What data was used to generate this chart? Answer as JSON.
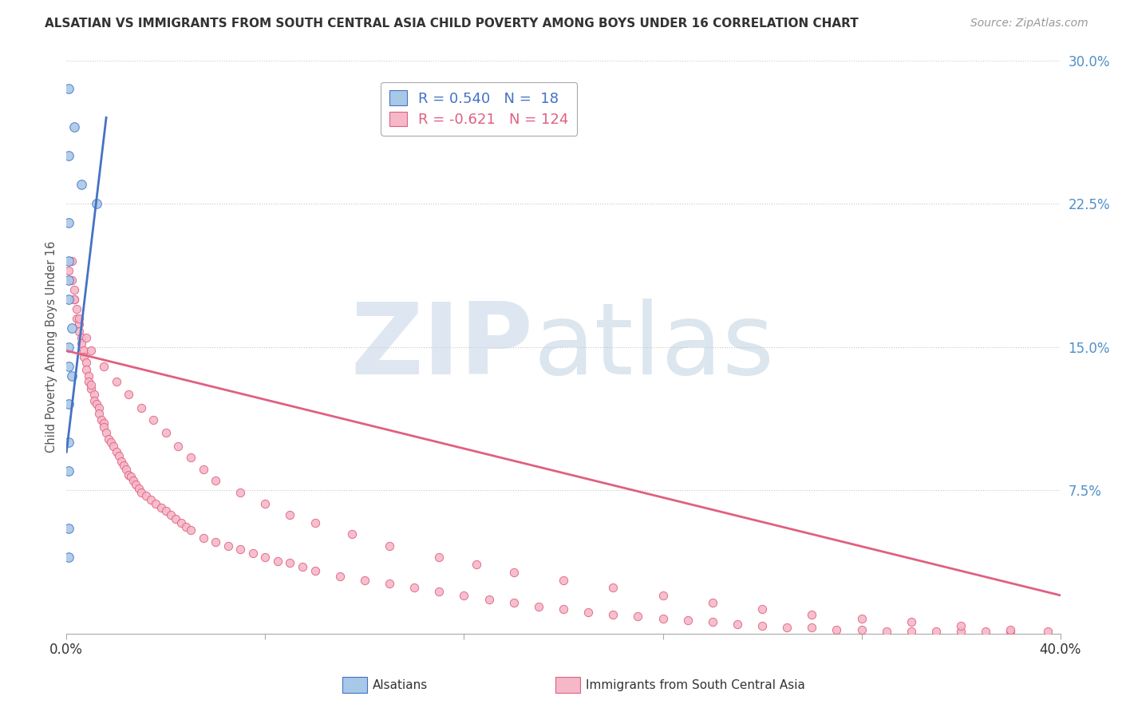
{
  "title": "ALSATIAN VS IMMIGRANTS FROM SOUTH CENTRAL ASIA CHILD POVERTY AMONG BOYS UNDER 16 CORRELATION CHART",
  "source": "Source: ZipAtlas.com",
  "ylabel": "Child Poverty Among Boys Under 16",
  "xlim": [
    0.0,
    0.4
  ],
  "ylim": [
    0.0,
    0.3
  ],
  "ytick_positions": [
    0.0,
    0.075,
    0.15,
    0.225,
    0.3
  ],
  "ytick_labels": [
    "",
    "7.5%",
    "15.0%",
    "22.5%",
    "30.0%"
  ],
  "xtick_positions": [
    0.0,
    0.08,
    0.16,
    0.24,
    0.32,
    0.4
  ],
  "xleft_label": "0.0%",
  "xright_label": "40.0%",
  "blue_R": 0.54,
  "blue_N": 18,
  "pink_R": -0.621,
  "pink_N": 124,
  "blue_color": "#a8c8e8",
  "pink_color": "#f5b8c8",
  "blue_line_color": "#4472c4",
  "pink_line_color": "#e06080",
  "watermark_zip": "ZIP",
  "watermark_atlas": "atlas",
  "legend_label_blue": "Alsatians",
  "legend_label_pink": "Immigrants from South Central Asia",
  "blue_x": [
    0.001,
    0.003,
    0.006,
    0.001,
    0.001,
    0.001,
    0.001,
    0.001,
    0.002,
    0.001,
    0.001,
    0.002,
    0.012,
    0.001,
    0.001,
    0.001,
    0.001,
    0.001
  ],
  "blue_y": [
    0.285,
    0.265,
    0.235,
    0.25,
    0.215,
    0.195,
    0.185,
    0.175,
    0.16,
    0.15,
    0.14,
    0.135,
    0.225,
    0.12,
    0.1,
    0.085,
    0.055,
    0.04
  ],
  "pink_x": [
    0.001,
    0.002,
    0.002,
    0.003,
    0.003,
    0.004,
    0.004,
    0.005,
    0.005,
    0.006,
    0.006,
    0.007,
    0.007,
    0.008,
    0.008,
    0.009,
    0.009,
    0.01,
    0.01,
    0.011,
    0.011,
    0.012,
    0.013,
    0.013,
    0.014,
    0.015,
    0.015,
    0.016,
    0.017,
    0.018,
    0.019,
    0.02,
    0.021,
    0.022,
    0.023,
    0.024,
    0.025,
    0.026,
    0.027,
    0.028,
    0.029,
    0.03,
    0.032,
    0.034,
    0.036,
    0.038,
    0.04,
    0.042,
    0.044,
    0.046,
    0.048,
    0.05,
    0.055,
    0.06,
    0.065,
    0.07,
    0.075,
    0.08,
    0.085,
    0.09,
    0.095,
    0.1,
    0.11,
    0.12,
    0.13,
    0.14,
    0.15,
    0.16,
    0.17,
    0.18,
    0.19,
    0.2,
    0.21,
    0.22,
    0.23,
    0.24,
    0.25,
    0.26,
    0.27,
    0.28,
    0.29,
    0.3,
    0.31,
    0.32,
    0.33,
    0.34,
    0.35,
    0.36,
    0.37,
    0.38,
    0.003,
    0.005,
    0.008,
    0.01,
    0.015,
    0.02,
    0.025,
    0.03,
    0.035,
    0.04,
    0.045,
    0.05,
    0.055,
    0.06,
    0.07,
    0.08,
    0.09,
    0.1,
    0.115,
    0.13,
    0.15,
    0.165,
    0.18,
    0.2,
    0.22,
    0.24,
    0.26,
    0.28,
    0.3,
    0.32,
    0.34,
    0.36,
    0.38,
    0.395
  ],
  "pink_y": [
    0.19,
    0.195,
    0.185,
    0.18,
    0.175,
    0.17,
    0.165,
    0.162,
    0.158,
    0.155,
    0.152,
    0.148,
    0.145,
    0.142,
    0.138,
    0.135,
    0.132,
    0.128,
    0.13,
    0.125,
    0.122,
    0.12,
    0.118,
    0.115,
    0.112,
    0.11,
    0.108,
    0.105,
    0.102,
    0.1,
    0.098,
    0.095,
    0.093,
    0.09,
    0.088,
    0.086,
    0.083,
    0.082,
    0.08,
    0.078,
    0.076,
    0.074,
    0.072,
    0.07,
    0.068,
    0.066,
    0.064,
    0.062,
    0.06,
    0.058,
    0.056,
    0.054,
    0.05,
    0.048,
    0.046,
    0.044,
    0.042,
    0.04,
    0.038,
    0.037,
    0.035,
    0.033,
    0.03,
    0.028,
    0.026,
    0.024,
    0.022,
    0.02,
    0.018,
    0.016,
    0.014,
    0.013,
    0.011,
    0.01,
    0.009,
    0.008,
    0.007,
    0.006,
    0.005,
    0.004,
    0.003,
    0.003,
    0.002,
    0.002,
    0.001,
    0.001,
    0.001,
    0.001,
    0.001,
    0.001,
    0.175,
    0.165,
    0.155,
    0.148,
    0.14,
    0.132,
    0.125,
    0.118,
    0.112,
    0.105,
    0.098,
    0.092,
    0.086,
    0.08,
    0.074,
    0.068,
    0.062,
    0.058,
    0.052,
    0.046,
    0.04,
    0.036,
    0.032,
    0.028,
    0.024,
    0.02,
    0.016,
    0.013,
    0.01,
    0.008,
    0.006,
    0.004,
    0.002,
    0.001
  ],
  "pink_line_start_x": 0.0,
  "pink_line_start_y": 0.148,
  "pink_line_end_x": 0.4,
  "pink_line_end_y": 0.02,
  "blue_line_start_x": 0.0,
  "blue_line_start_y": 0.095,
  "blue_line_end_x": 0.016,
  "blue_line_end_y": 0.27
}
